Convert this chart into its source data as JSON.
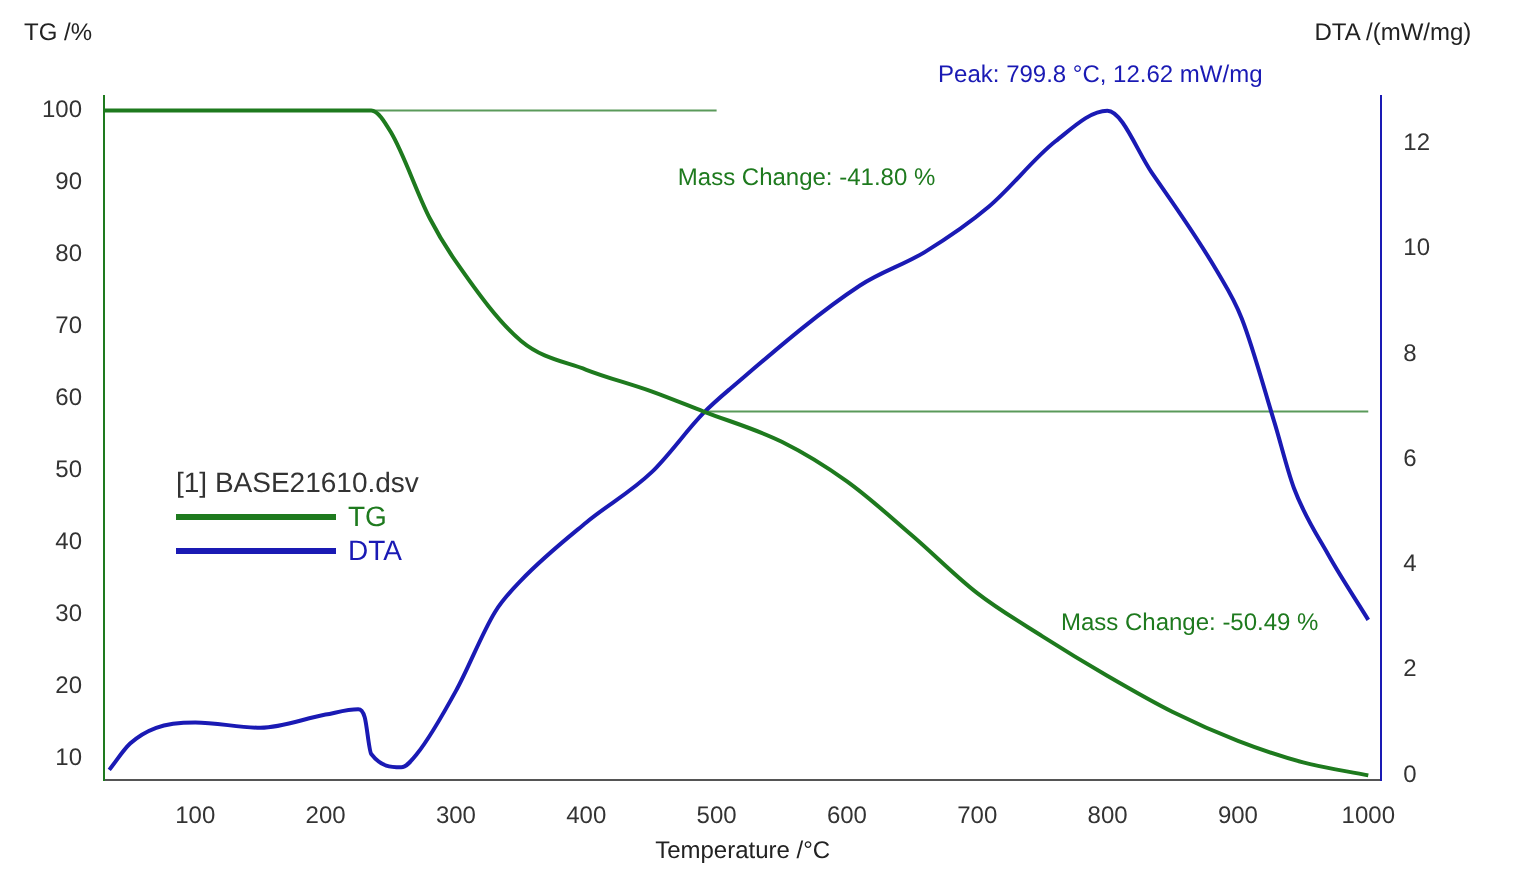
{
  "chart_data": {
    "type": "line",
    "xlabel": "Temperature /°C",
    "ylabel": "TG /%",
    "y2label": "DTA /(mW/mg)",
    "legend_title": "[1] BASE21610.dsv",
    "xlim": [
      30,
      1010
    ],
    "xticks": [
      100,
      200,
      300,
      400,
      500,
      600,
      700,
      800,
      900,
      1000
    ],
    "ylim": [
      7,
      102
    ],
    "yticks": [
      10,
      20,
      30,
      40,
      50,
      60,
      70,
      80,
      90,
      100
    ],
    "y2lim": [
      -0.1,
      12.9
    ],
    "y2ticks": [
      0,
      2,
      4,
      6,
      8,
      10,
      12
    ],
    "grid": false,
    "legend": "left",
    "marker": "none",
    "line_style": "solid",
    "series": [
      {
        "name": "TG",
        "color": "#1e7a1e",
        "x": [
          30,
          100,
          200,
          235,
          250,
          280,
          300,
          350,
          400,
          450,
          490,
          550,
          600,
          650,
          700,
          750,
          800,
          850,
          900,
          950,
          1000
        ],
        "values": [
          100,
          100,
          100,
          100,
          97,
          85,
          79,
          68,
          64,
          61,
          58.2,
          54,
          48.5,
          41,
          33,
          27,
          21.5,
          16.5,
          12.5,
          9.5,
          7.7
        ]
      },
      {
        "name": "DTA",
        "color": "#1a1ab4",
        "axis": "y2",
        "x": [
          34,
          50,
          70,
          100,
          150,
          200,
          225,
          230,
          235,
          258,
          270,
          300,
          330,
          350,
          400,
          450,
          490,
          510,
          610,
          660,
          709,
          760,
          799.8,
          834,
          884,
          903,
          928,
          943,
          969,
          1000
        ],
        "values": [
          0.1,
          0.6,
          0.9,
          1.0,
          0.9,
          1.15,
          1.25,
          1.1,
          0.4,
          0.15,
          0.4,
          1.6,
          3.1,
          3.7,
          4.8,
          5.75,
          6.88,
          7.33,
          9.3,
          9.94,
          10.8,
          12.04,
          12.62,
          11.44,
          9.57,
          8.67,
          6.7,
          5.45,
          4.2,
          2.95
        ]
      },
      {
        "color": "#5a9a5a",
        "x": [
          235,
          500
        ],
        "values": [
          100,
          100
        ]
      },
      {
        "color": "#5a9a5a",
        "x": [
          490,
          1000
        ],
        "values": [
          58.2,
          58.2
        ]
      }
    ],
    "annotations": [
      "Mass Change: -41.80 %",
      "Mass Change: -50.49 %",
      "Peak: 799.8 °C, 12.62 mW/mg"
    ]
  }
}
